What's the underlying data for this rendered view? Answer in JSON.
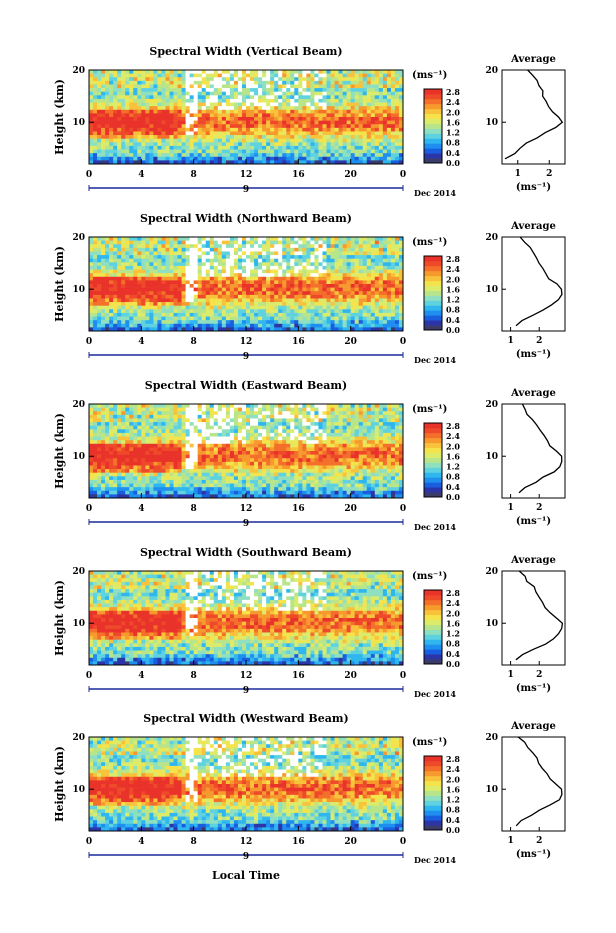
{
  "colorbar": {
    "unit": "(ms⁻¹)",
    "ticks": [
      "2.8",
      "2.4",
      "2.0",
      "1.6",
      "1.2",
      "0.8",
      "0.4",
      "0.0"
    ],
    "colors": [
      "#3b3b6b",
      "#2b35a8",
      "#1a5ee0",
      "#1f8fef",
      "#2fb6ef",
      "#5fd2e0",
      "#8fe0c0",
      "#b9e58a",
      "#dcec6a",
      "#f4e34a",
      "#f8c23a",
      "#f79a2e",
      "#f4702a",
      "#ee4a2a",
      "#e8322a"
    ]
  },
  "xaxis": {
    "ticks": [
      "0",
      "4",
      "8",
      "12",
      "16",
      "20",
      "0"
    ],
    "date_day": "9",
    "date_label": "Dec 2014",
    "label": "Local Time"
  },
  "yaxis": {
    "label": "Height (km)",
    "ticks": [
      "20",
      "10"
    ]
  },
  "avg_panel": {
    "title": "Average",
    "unit": "(ms⁻¹)"
  },
  "chart_data": [
    {
      "type": "heatmap",
      "title": "Spectral Width (Vertical Beam)",
      "xlabel": "",
      "ylabel": "Height (km)",
      "xlim": [
        0,
        24
      ],
      "ylim": [
        2,
        20
      ],
      "colorbar_range": [
        0.0,
        3.0
      ],
      "average_profile": {
        "xticks": [
          "1",
          "2"
        ],
        "xlim": [
          0.5,
          2.5
        ],
        "height": [
          3,
          4,
          5,
          6,
          7,
          8,
          9,
          10,
          11,
          12,
          13,
          14,
          15,
          16,
          17,
          18,
          19,
          20
        ],
        "width": [
          0.6,
          0.9,
          1.1,
          1.3,
          1.6,
          1.9,
          2.2,
          2.4,
          2.3,
          2.1,
          2.0,
          1.9,
          1.8,
          1.8,
          1.7,
          1.6,
          1.5,
          1.3
        ]
      }
    },
    {
      "type": "heatmap",
      "title": "Spectral Width (Northward Beam)",
      "xlabel": "",
      "ylabel": "Height (km)",
      "xlim": [
        0,
        24
      ],
      "ylim": [
        2,
        20
      ],
      "colorbar_range": [
        0.0,
        3.0
      ],
      "average_profile": {
        "xticks": [
          "1",
          "2"
        ],
        "xlim": [
          0.7,
          2.9
        ],
        "height": [
          3,
          4,
          5,
          6,
          7,
          8,
          9,
          10,
          11,
          12,
          13,
          14,
          15,
          16,
          17,
          18,
          19,
          20
        ],
        "width": [
          1.2,
          1.4,
          1.8,
          2.1,
          2.4,
          2.7,
          2.8,
          2.8,
          2.6,
          2.3,
          2.2,
          2.1,
          2.0,
          1.9,
          1.8,
          1.7,
          1.5,
          1.3
        ]
      }
    },
    {
      "type": "heatmap",
      "title": "Spectral Width (Eastward Beam)",
      "xlabel": "",
      "ylabel": "Height (km)",
      "xlim": [
        0,
        24
      ],
      "ylim": [
        2,
        20
      ],
      "colorbar_range": [
        0.0,
        3.0
      ],
      "average_profile": {
        "xticks": [
          "1",
          "2"
        ],
        "xlim": [
          0.7,
          2.9
        ],
        "height": [
          3,
          4,
          5,
          6,
          7,
          8,
          9,
          10,
          11,
          12,
          13,
          14,
          15,
          16,
          17,
          18,
          19,
          20
        ],
        "width": [
          1.3,
          1.5,
          1.9,
          2.1,
          2.5,
          2.7,
          2.8,
          2.8,
          2.6,
          2.4,
          2.3,
          2.2,
          2.0,
          1.9,
          1.8,
          1.6,
          1.5,
          1.4
        ]
      }
    },
    {
      "type": "heatmap",
      "title": "Spectral Width (Southward Beam)",
      "xlabel": "",
      "ylabel": "Height (km)",
      "xlim": [
        0,
        24
      ],
      "ylim": [
        2,
        20
      ],
      "colorbar_range": [
        0.0,
        3.0
      ],
      "average_profile": {
        "xticks": [
          "1",
          "2"
        ],
        "xlim": [
          0.7,
          2.9
        ],
        "height": [
          3,
          4,
          5,
          6,
          7,
          8,
          9,
          10,
          11,
          12,
          13,
          14,
          15,
          16,
          17,
          18,
          19,
          20
        ],
        "width": [
          1.2,
          1.4,
          1.8,
          2.2,
          2.5,
          2.7,
          2.8,
          2.8,
          2.6,
          2.4,
          2.2,
          2.1,
          2.0,
          1.9,
          1.8,
          1.6,
          1.5,
          1.3
        ]
      }
    },
    {
      "type": "heatmap",
      "title": "Spectral Width (Westward Beam)",
      "xlabel": "",
      "ylabel": "Height (km)",
      "xlim": [
        0,
        24
      ],
      "ylim": [
        2,
        20
      ],
      "colorbar_range": [
        0.0,
        3.0
      ],
      "average_profile": {
        "xticks": [
          "1",
          "2"
        ],
        "xlim": [
          0.7,
          2.9
        ],
        "height": [
          3,
          4,
          5,
          6,
          7,
          8,
          9,
          10,
          11,
          12,
          13,
          14,
          15,
          16,
          17,
          18,
          19,
          20
        ],
        "width": [
          1.2,
          1.4,
          1.7,
          2.0,
          2.4,
          2.7,
          2.8,
          2.8,
          2.6,
          2.4,
          2.3,
          2.1,
          2.0,
          1.9,
          1.8,
          1.6,
          1.5,
          1.3
        ]
      }
    }
  ]
}
